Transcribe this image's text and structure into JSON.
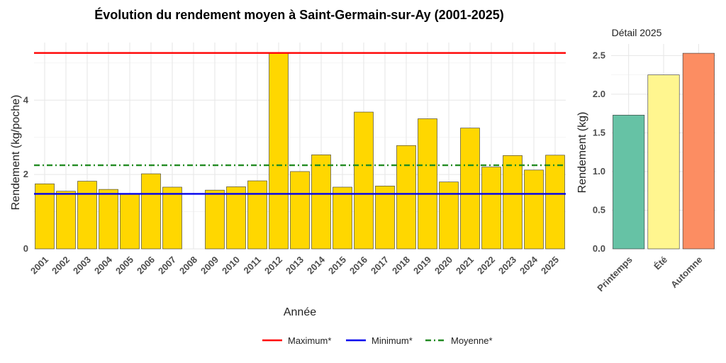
{
  "chart_data": [
    {
      "type": "bar",
      "title": "Évolution du rendement moyen à Saint-Germain-sur-Ay (2001-2025)",
      "xlabel": "Année",
      "ylabel": "Rendement (kg/poche)",
      "categories": [
        "2001",
        "2002",
        "2003",
        "2004",
        "2005",
        "2006",
        "2007",
        "2008",
        "2009",
        "2010",
        "2011",
        "2012",
        "2013",
        "2014",
        "2015",
        "2016",
        "2017",
        "2018",
        "2019",
        "2020",
        "2021",
        "2022",
        "2023",
        "2024",
        "2025"
      ],
      "values": [
        1.75,
        1.55,
        1.82,
        1.6,
        1.48,
        2.02,
        1.66,
        null,
        1.58,
        1.67,
        1.83,
        5.27,
        2.08,
        2.53,
        1.66,
        3.68,
        1.69,
        2.78,
        3.5,
        1.8,
        3.25,
        2.2,
        2.51,
        2.12,
        2.52
      ],
      "ylim": [
        0,
        5.55
      ],
      "yticks": [
        0,
        2,
        4
      ],
      "bar_color": "#FFD700",
      "reference_lines": [
        {
          "name": "Maximum*",
          "value": 5.27,
          "color": "#FF0000",
          "style": "solid"
        },
        {
          "name": "Minimum*",
          "value": 1.48,
          "color": "#0000EE",
          "style": "solid"
        },
        {
          "name": "Moyenne*",
          "value": 2.25,
          "color": "#228B22",
          "style": "dotdash"
        }
      ],
      "grid": true,
      "legend_position": "bottom"
    },
    {
      "type": "bar",
      "title": "Détail 2025",
      "xlabel": "",
      "ylabel": "Rendement (kg)",
      "categories": [
        "Printemps",
        "Été",
        "Automne"
      ],
      "values": [
        1.73,
        2.25,
        2.53
      ],
      "colors": [
        "#66C2A5",
        "#FFF68F",
        "#FC8D62"
      ],
      "ylim": [
        0,
        2.65
      ],
      "yticks": [
        0.0,
        0.5,
        1.0,
        1.5,
        2.0,
        2.5
      ],
      "grid": true
    }
  ]
}
